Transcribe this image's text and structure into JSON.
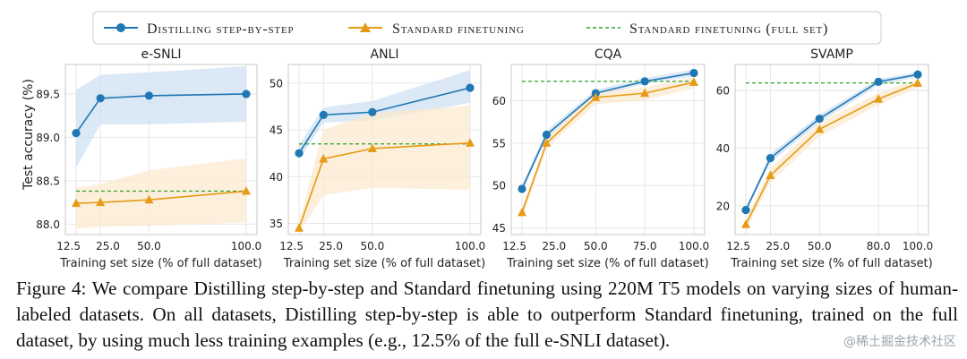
{
  "legend": {
    "items": [
      {
        "label": "Distilling step-by-step",
        "style": "marker-circle"
      },
      {
        "label": "Standard finetuning",
        "style": "marker-triangle"
      },
      {
        "label": "Standard finetuning (full set)",
        "style": "dashed"
      }
    ]
  },
  "colors": {
    "distill": "#1f77b4",
    "standard": "#e69b17",
    "full_set": "#2ca02c",
    "distill_band": "#cfe0f1",
    "standard_band": "#fbe9cf",
    "grid": "#e6e6e6",
    "axis": "#c8c8c8"
  },
  "chart_data": [
    {
      "type": "line",
      "title": "e-SNLI",
      "xlabel": "Training set size (% of full dataset)",
      "ylabel": "Test accuracy (%)",
      "x": [
        12.5,
        25.0,
        50.0,
        100.0
      ],
      "xticks": [
        "12.5",
        "25.0",
        "50.0",
        "100.0"
      ],
      "yticks": [
        88.0,
        88.5,
        89.0,
        89.5
      ],
      "ytick_labels": [
        "88.0",
        "88.5",
        "89.0",
        "89.5"
      ],
      "ylim": [
        87.88,
        89.84
      ],
      "grid": true,
      "series": [
        {
          "name": "Distilling step-by-step",
          "values": [
            89.05,
            89.45,
            89.48,
            89.5
          ],
          "band_low": [
            88.65,
            89.15,
            89.15,
            89.18
          ],
          "band_high": [
            89.55,
            89.72,
            89.75,
            89.82
          ]
        },
        {
          "name": "Standard finetuning",
          "values": [
            88.24,
            88.25,
            88.28,
            88.38
          ],
          "band_low": [
            87.95,
            87.97,
            87.98,
            88.02
          ],
          "band_high": [
            88.42,
            88.46,
            88.62,
            88.76
          ]
        }
      ],
      "baseline": {
        "name": "Standard finetuning (full set)",
        "value": 88.38
      }
    },
    {
      "type": "line",
      "title": "ANLI",
      "xlabel": "Training set size (% of full dataset)",
      "ylabel": "",
      "x": [
        12.5,
        25.0,
        50.0,
        100.0
      ],
      "xticks": [
        "12.5",
        "25.0",
        "50.0",
        "100.0"
      ],
      "yticks": [
        35,
        40,
        45,
        50
      ],
      "ytick_labels": [
        "35",
        "40",
        "45",
        "50"
      ],
      "ylim": [
        33.8,
        52.0
      ],
      "grid": true,
      "series": [
        {
          "name": "Distilling step-by-step",
          "values": [
            42.5,
            46.6,
            46.9,
            49.5
          ],
          "band_low": [
            41.8,
            45.8,
            46.0,
            47.9
          ],
          "band_high": [
            43.4,
            47.4,
            48.1,
            51.4
          ]
        },
        {
          "name": "Standard finetuning",
          "values": [
            34.5,
            41.9,
            43.0,
            43.6
          ],
          "band_low": [
            34.0,
            38.0,
            38.8,
            38.6
          ],
          "band_high": [
            35.2,
            45.0,
            46.8,
            47.6
          ]
        }
      ],
      "baseline": {
        "name": "Standard finetuning (full set)",
        "value": 43.5
      }
    },
    {
      "type": "line",
      "title": "CQA",
      "xlabel": "Training set size (% of full dataset)",
      "ylabel": "",
      "x": [
        12.5,
        25.0,
        50.0,
        75.0,
        100.0
      ],
      "xticks": [
        "12.5",
        "25.0",
        "50.0",
        "75.0",
        "100.0"
      ],
      "yticks": [
        45,
        50,
        55,
        60
      ],
      "ytick_labels": [
        "45",
        "50",
        "55",
        "60"
      ],
      "ylim": [
        44.2,
        64.3
      ],
      "grid": true,
      "series": [
        {
          "name": "Distilling step-by-step",
          "values": [
            49.6,
            56.0,
            60.9,
            62.3,
            63.3
          ],
          "band_low": [
            49.2,
            55.6,
            60.5,
            62.0,
            62.9
          ],
          "band_high": [
            50.1,
            56.5,
            61.3,
            62.7,
            63.7
          ]
        },
        {
          "name": "Standard finetuning",
          "values": [
            46.8,
            55.0,
            60.4,
            60.9,
            62.2
          ],
          "band_low": [
            46.1,
            54.4,
            59.6,
            60.1,
            61.5
          ],
          "band_high": [
            47.4,
            55.6,
            61.0,
            61.6,
            62.8
          ]
        }
      ],
      "baseline": {
        "name": "Standard finetuning (full set)",
        "value": 62.3
      }
    },
    {
      "type": "line",
      "title": "SVAMP",
      "xlabel": "Training set size (% of full dataset)",
      "ylabel": "",
      "x": [
        12.5,
        25.0,
        50.0,
        80.0,
        100.0
      ],
      "xticks": [
        "12.5",
        "25.0",
        "50.0",
        "80.0",
        "100.0"
      ],
      "yticks": [
        20,
        40,
        60
      ],
      "ytick_labels": [
        "20",
        "40",
        "60"
      ],
      "ylim": [
        10.0,
        69.0
      ],
      "grid": true,
      "series": [
        {
          "name": "Distilling step-by-step",
          "values": [
            18.5,
            36.5,
            50.2,
            63.0,
            65.5
          ],
          "band_low": [
            17.8,
            35.0,
            48.8,
            61.8,
            64.6
          ],
          "band_high": [
            19.5,
            38.0,
            51.6,
            64.0,
            66.4
          ]
        },
        {
          "name": "Standard finetuning",
          "values": [
            13.5,
            30.5,
            46.5,
            57.0,
            62.5
          ],
          "band_low": [
            11.5,
            28.0,
            44.0,
            55.0,
            61.0
          ],
          "band_high": [
            15.5,
            33.0,
            49.0,
            59.0,
            64.0
          ]
        }
      ],
      "baseline": {
        "name": "Standard finetuning (full set)",
        "value": 62.6
      }
    }
  ],
  "caption": "Figure 4: We compare Distilling step-by-step and Standard finetuning using 220M T5 models on varying sizes of human-labeled datasets. On all datasets, Distilling step-by-step is able to outperform Standard finetuning, trained on the full dataset, by using much less training examples (e.g., 12.5% of the full e-SNLI dataset).",
  "watermark": "@稀土掘金技术社区"
}
